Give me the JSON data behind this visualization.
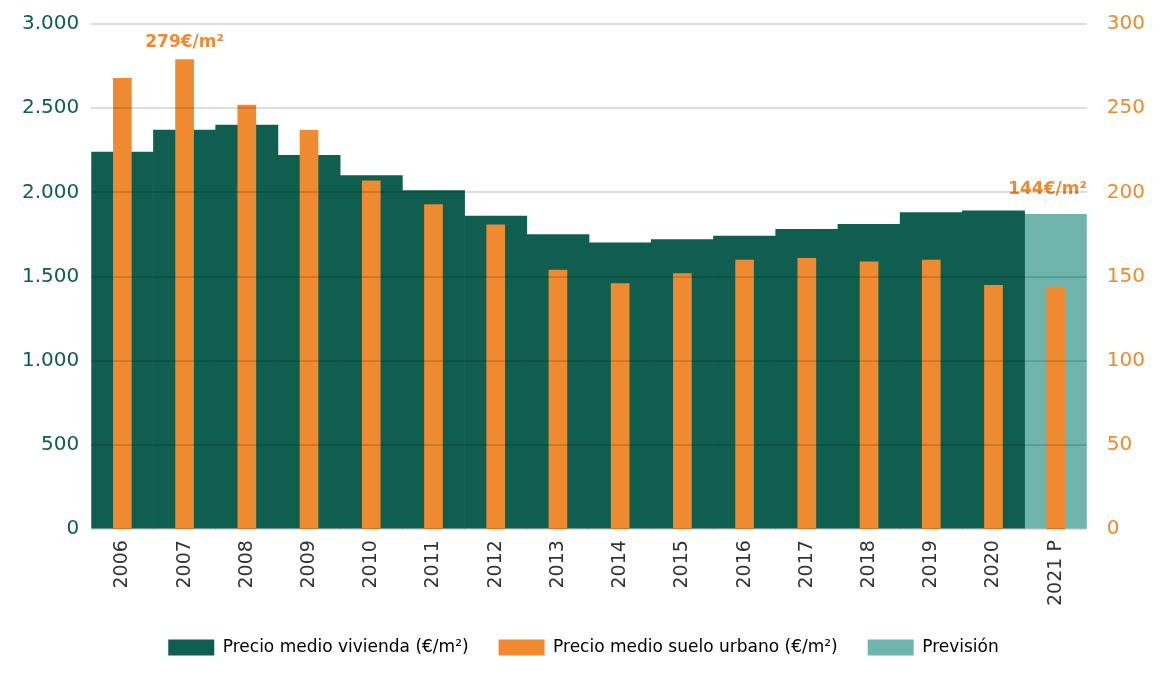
{
  "chart_data": {
    "type": "bar",
    "categories": [
      "2006",
      "2007",
      "2008",
      "2009",
      "2010",
      "2011",
      "2012",
      "2013",
      "2014",
      "2015",
      "2016",
      "2017",
      "2018",
      "2019",
      "2020",
      "2021 P"
    ],
    "series": [
      {
        "name": "Precio medio vivienda (€/m²)",
        "color": "#0f5e4f",
        "values": [
          2240,
          2370,
          2400,
          2220,
          2100,
          2010,
          1860,
          1750,
          1700,
          1720,
          1740,
          1780,
          1810,
          1880,
          1890,
          null
        ]
      },
      {
        "name": "Previsión",
        "color": "#6fb5ad",
        "values": [
          null,
          null,
          null,
          null,
          null,
          null,
          null,
          null,
          null,
          null,
          null,
          null,
          null,
          null,
          null,
          1870
        ]
      },
      {
        "name": "Precio medio suelo urbano (€/m²)",
        "color": "#ef8a30",
        "axis": "y2",
        "values": [
          268,
          279,
          252,
          237,
          207,
          193,
          181,
          154,
          146,
          152,
          160,
          161,
          159,
          160,
          145,
          144
        ]
      }
    ],
    "ylim": [
      0,
      3000
    ],
    "yticks": [
      {
        "value": 0,
        "label": "0"
      },
      {
        "value": 500,
        "label": "500"
      },
      {
        "value": 1000,
        "label": "1.000"
      },
      {
        "value": 1500,
        "label": "1.500"
      },
      {
        "value": 2000,
        "label": "2.000"
      },
      {
        "value": 2500,
        "label": "2.500"
      },
      {
        "value": 3000,
        "label": "3.000"
      }
    ],
    "y2lim": [
      0,
      300
    ],
    "y2ticks": [
      0,
      50,
      100,
      150,
      200,
      250,
      300
    ],
    "annotations": [
      "279€/m²",
      "144€/m²"
    ],
    "grid": "y",
    "legend": "bottom"
  }
}
